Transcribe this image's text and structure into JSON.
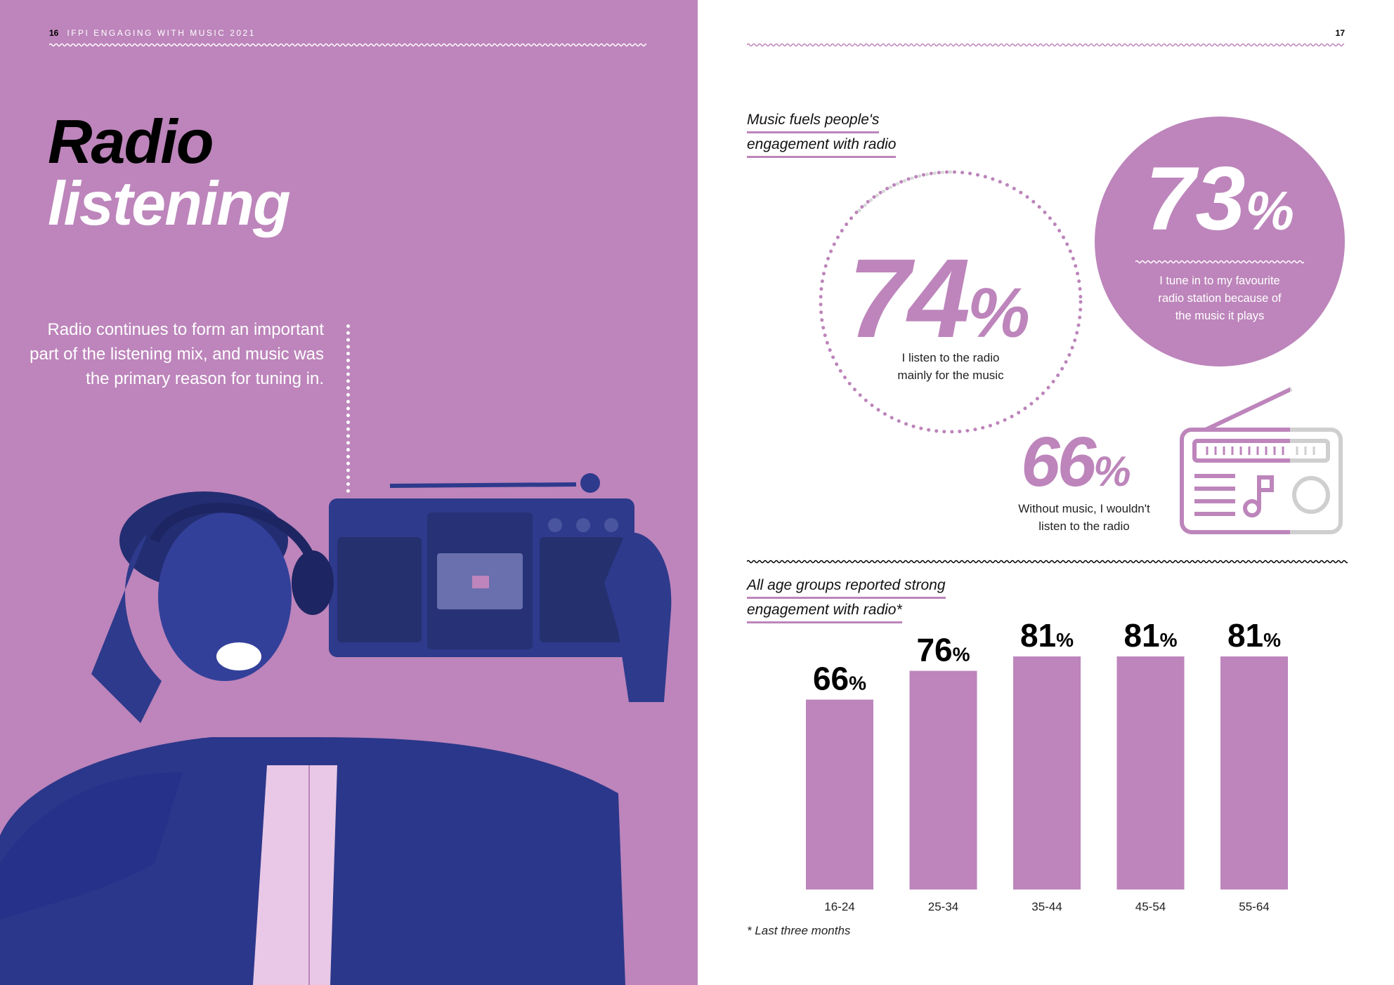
{
  "left_page": {
    "page_number": "16",
    "running_head": "IFPI ENGAGING WITH MUSIC 2021",
    "title_line1": "Radio",
    "title_line2": "listening",
    "intro": "Radio continues to form an important part of the listening mix, and music was the primary reason for tuning in."
  },
  "right_page": {
    "page_number": "17",
    "section1_title_line1": "Music fuels people's",
    "section1_title_line2": "engagement with radio",
    "stat_74": {
      "value": "74",
      "unit": "%",
      "caption_line1": "I listen to the radio",
      "caption_line2": "mainly for the music"
    },
    "stat_73": {
      "value": "73",
      "unit": "%",
      "caption_line1": "I tune in to my favourite",
      "caption_line2": "radio station because of",
      "caption_line3": "the music it plays"
    },
    "stat_66": {
      "value": "66",
      "unit": "%",
      "caption_line1": "Without music, I wouldn't",
      "caption_line2": "listen to the radio"
    },
    "section2_title_line1": "All age groups reported strong",
    "section2_title_line2": "engagement with radio*",
    "footnote": "* Last three months"
  },
  "colors": {
    "accent": "#bd85bb",
    "photo_tint": "#2e3a8c",
    "text_dark": "#000000"
  },
  "chart_data": {
    "type": "bar",
    "categories": [
      "16-24",
      "25-34",
      "35-44",
      "45-54",
      "55-64"
    ],
    "values": [
      66,
      76,
      81,
      81,
      81
    ],
    "value_suffix": "%",
    "ylim": [
      0,
      81
    ],
    "grid": false
  }
}
